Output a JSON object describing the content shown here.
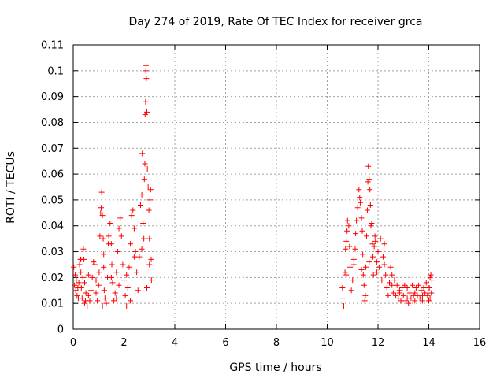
{
  "colors": {
    "series": "#ff0000",
    "grid": "#a0a0a0",
    "axis": "#000000",
    "background": "#ffffff"
  },
  "chart_data": {
    "type": "scatter",
    "title": "Day 274 of 2019, Rate Of TEC Index for receiver grca",
    "xlabel": "GPS time / hours",
    "ylabel": "ROTI / TECUs",
    "xlim": [
      0,
      16
    ],
    "ylim": [
      0,
      0.11
    ],
    "xticks": [
      0,
      2,
      4,
      6,
      8,
      10,
      12,
      14,
      16
    ],
    "xtick_labels": [
      "0",
      "2",
      "4",
      "6",
      "8",
      "10",
      "12",
      "14",
      "16"
    ],
    "yticks": [
      0,
      0.01,
      0.02,
      0.03,
      0.04,
      0.05,
      0.06,
      0.07,
      0.08,
      0.09,
      0.1,
      0.11
    ],
    "ytick_labels": [
      "0",
      "0.01",
      "0.02",
      "0.03",
      "0.04",
      "0.05",
      "0.06",
      "0.07",
      "0.08",
      "0.09",
      "0.1",
      "0.11"
    ],
    "grid": true,
    "marker": "plus",
    "series": [
      {
        "points": [
          [
            0.02,
            0.024
          ],
          [
            0.05,
            0.017
          ],
          [
            0.08,
            0.021
          ],
          [
            0.1,
            0.015
          ],
          [
            0.12,
            0.019
          ],
          [
            0.15,
            0.013
          ],
          [
            0.18,
            0.016
          ],
          [
            0.2,
            0.012
          ],
          [
            0.22,
            0.018
          ],
          [
            0.25,
            0.025
          ],
          [
            0.28,
            0.027
          ],
          [
            0.3,
            0.022
          ],
          [
            0.32,
            0.016
          ],
          [
            0.35,
            0.012
          ],
          [
            0.38,
            0.02
          ],
          [
            0.4,
            0.031
          ],
          [
            0.42,
            0.027
          ],
          [
            0.45,
            0.018
          ],
          [
            0.48,
            0.011
          ],
          [
            0.5,
            0.014
          ],
          [
            0.55,
            0.009
          ],
          [
            0.6,
            0.013
          ],
          [
            0.65,
            0.011
          ],
          [
            0.7,
            0.015
          ],
          [
            0.75,
            0.02
          ],
          [
            0.8,
            0.026
          ],
          [
            0.85,
            0.025
          ],
          [
            0.9,
            0.014
          ],
          [
            0.95,
            0.011
          ],
          [
            1.0,
            0.017
          ],
          [
            1.02,
            0.022
          ],
          [
            1.05,
            0.036
          ],
          [
            1.08,
            0.045
          ],
          [
            1.1,
            0.047
          ],
          [
            1.12,
            0.053
          ],
          [
            1.15,
            0.044
          ],
          [
            1.18,
            0.035
          ],
          [
            1.2,
            0.029
          ],
          [
            1.22,
            0.015
          ],
          [
            1.25,
            0.012
          ],
          [
            1.3,
            0.01
          ],
          [
            1.35,
            0.02
          ],
          [
            1.38,
            0.033
          ],
          [
            1.4,
            0.036
          ],
          [
            1.45,
            0.041
          ],
          [
            1.5,
            0.033
          ],
          [
            1.52,
            0.025
          ],
          [
            1.55,
            0.018
          ],
          [
            1.6,
            0.011
          ],
          [
            1.65,
            0.014
          ],
          [
            1.7,
            0.022
          ],
          [
            1.75,
            0.03
          ],
          [
            1.8,
            0.039
          ],
          [
            1.85,
            0.043
          ],
          [
            1.9,
            0.036
          ],
          [
            1.95,
            0.025
          ],
          [
            2.0,
            0.019
          ],
          [
            2.05,
            0.013
          ],
          [
            2.1,
            0.009
          ],
          [
            2.15,
            0.016
          ],
          [
            2.2,
            0.024
          ],
          [
            2.25,
            0.033
          ],
          [
            2.3,
            0.044
          ],
          [
            2.35,
            0.046
          ],
          [
            2.4,
            0.039
          ],
          [
            2.45,
            0.03
          ],
          [
            2.5,
            0.022
          ],
          [
            2.55,
            0.015
          ],
          [
            2.6,
            0.028
          ],
          [
            2.65,
            0.048
          ],
          [
            2.7,
            0.052
          ],
          [
            2.72,
            0.068
          ],
          [
            2.75,
            0.041
          ],
          [
            2.78,
            0.035
          ],
          [
            2.8,
            0.058
          ],
          [
            2.82,
            0.064
          ],
          [
            2.83,
            0.083
          ],
          [
            2.85,
            0.088
          ],
          [
            2.86,
            0.1
          ],
          [
            2.87,
            0.102
          ],
          [
            2.88,
            0.097
          ],
          [
            2.9,
            0.084
          ],
          [
            2.92,
            0.062
          ],
          [
            2.95,
            0.055
          ],
          [
            2.98,
            0.046
          ],
          [
            3.0,
            0.035
          ],
          [
            3.02,
            0.05
          ],
          [
            3.05,
            0.054
          ],
          [
            3.07,
            0.027
          ],
          [
            3.08,
            0.019
          ],
          [
            0.3,
            0.027
          ],
          [
            0.6,
            0.021
          ],
          [
            0.9,
            0.019
          ],
          [
            1.2,
            0.024
          ],
          [
            1.5,
            0.02
          ],
          [
            1.8,
            0.017
          ],
          [
            2.1,
            0.021
          ],
          [
            2.4,
            0.028
          ],
          [
            2.7,
            0.031
          ],
          [
            3.0,
            0.025
          ],
          [
            0.45,
            0.01
          ],
          [
            1.15,
            0.009
          ],
          [
            1.7,
            0.012
          ],
          [
            2.25,
            0.011
          ],
          [
            2.9,
            0.016
          ],
          [
            10.6,
            0.016
          ],
          [
            10.62,
            0.012
          ],
          [
            10.65,
            0.009
          ],
          [
            10.7,
            0.022
          ],
          [
            10.72,
            0.031
          ],
          [
            10.75,
            0.034
          ],
          [
            10.78,
            0.038
          ],
          [
            10.8,
            0.042
          ],
          [
            10.85,
            0.04
          ],
          [
            10.88,
            0.032
          ],
          [
            10.9,
            0.024
          ],
          [
            10.95,
            0.015
          ],
          [
            11.0,
            0.019
          ],
          [
            11.05,
            0.025
          ],
          [
            11.1,
            0.031
          ],
          [
            11.12,
            0.037
          ],
          [
            11.15,
            0.042
          ],
          [
            11.2,
            0.047
          ],
          [
            11.25,
            0.054
          ],
          [
            11.28,
            0.051
          ],
          [
            11.3,
            0.049
          ],
          [
            11.35,
            0.043
          ],
          [
            11.38,
            0.038
          ],
          [
            11.4,
            0.029
          ],
          [
            11.42,
            0.021
          ],
          [
            11.45,
            0.017
          ],
          [
            11.48,
            0.011
          ],
          [
            11.5,
            0.013
          ],
          [
            11.52,
            0.024
          ],
          [
            11.55,
            0.036
          ],
          [
            11.58,
            0.046
          ],
          [
            11.6,
            0.057
          ],
          [
            11.62,
            0.063
          ],
          [
            11.65,
            0.058
          ],
          [
            11.68,
            0.054
          ],
          [
            11.7,
            0.048
          ],
          [
            11.72,
            0.04
          ],
          [
            11.75,
            0.041
          ],
          [
            11.78,
            0.033
          ],
          [
            11.8,
            0.028
          ],
          [
            11.82,
            0.021
          ],
          [
            11.85,
            0.032
          ],
          [
            11.88,
            0.036
          ],
          [
            11.9,
            0.034
          ],
          [
            11.95,
            0.026
          ],
          [
            12.0,
            0.03
          ],
          [
            12.05,
            0.024
          ],
          [
            12.1,
            0.035
          ],
          [
            12.15,
            0.019
          ],
          [
            12.2,
            0.028
          ],
          [
            12.25,
            0.033
          ],
          [
            12.3,
            0.021
          ],
          [
            12.35,
            0.016
          ],
          [
            12.4,
            0.013
          ],
          [
            12.45,
            0.018
          ],
          [
            12.5,
            0.024
          ],
          [
            12.55,
            0.017
          ],
          [
            12.6,
            0.014
          ],
          [
            12.65,
            0.019
          ],
          [
            12.7,
            0.013
          ],
          [
            12.75,
            0.017
          ],
          [
            12.8,
            0.012
          ],
          [
            12.85,
            0.015
          ],
          [
            12.9,
            0.011
          ],
          [
            12.95,
            0.016
          ],
          [
            13.0,
            0.013
          ],
          [
            13.05,
            0.017
          ],
          [
            13.1,
            0.011
          ],
          [
            13.15,
            0.016
          ],
          [
            13.2,
            0.01
          ],
          [
            13.25,
            0.014
          ],
          [
            13.3,
            0.012
          ],
          [
            13.35,
            0.017
          ],
          [
            13.4,
            0.013
          ],
          [
            13.45,
            0.011
          ],
          [
            13.5,
            0.016
          ],
          [
            13.55,
            0.013
          ],
          [
            13.6,
            0.017
          ],
          [
            13.65,
            0.012
          ],
          [
            13.7,
            0.015
          ],
          [
            13.75,
            0.011
          ],
          [
            13.8,
            0.016
          ],
          [
            13.85,
            0.014
          ],
          [
            13.9,
            0.018
          ],
          [
            13.95,
            0.013
          ],
          [
            14.0,
            0.011
          ],
          [
            14.02,
            0.016
          ],
          [
            14.05,
            0.02
          ],
          [
            14.08,
            0.021
          ],
          [
            14.1,
            0.014
          ],
          [
            14.12,
            0.019
          ],
          [
            10.75,
            0.021
          ],
          [
            11.05,
            0.027
          ],
          [
            11.35,
            0.023
          ],
          [
            11.65,
            0.026
          ],
          [
            11.95,
            0.022
          ],
          [
            12.25,
            0.025
          ],
          [
            12.55,
            0.021
          ],
          [
            12.85,
            0.014
          ],
          [
            13.15,
            0.012
          ],
          [
            13.45,
            0.014
          ],
          [
            13.75,
            0.013
          ],
          [
            14.05,
            0.012
          ]
        ]
      }
    ]
  }
}
